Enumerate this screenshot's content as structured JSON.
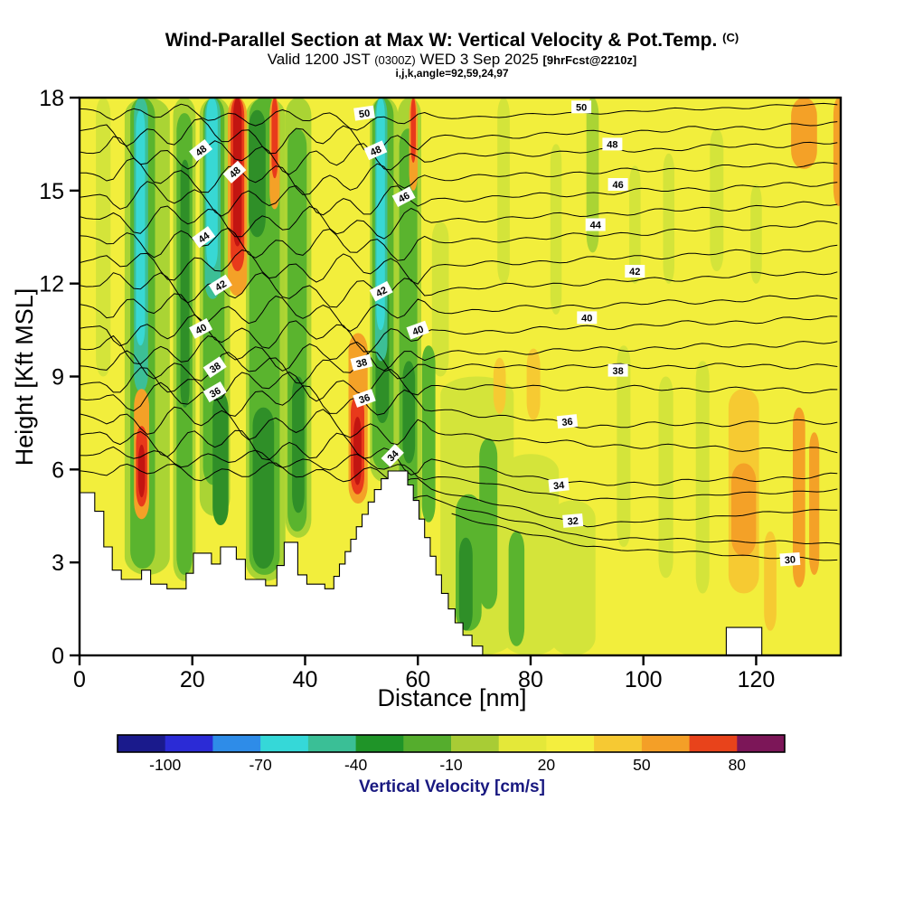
{
  "header": {
    "title": "Wind-Parallel Section at Max W: Vertical Velocity & Pot.Temp.",
    "title_unit": "(C)",
    "valid_prefix": "Valid 1200 JST",
    "valid_time_z": "(0300Z)",
    "valid_date": "WED 3 Sep 2025",
    "forecast_info": "[9hrFcst@2210z]",
    "grid_info": "i,j,k,angle=92,59,24,97"
  },
  "chart_data": {
    "type": "heatmap",
    "subtype": "vertical-cross-section-contour",
    "title": "Wind-Parallel Section at Max W: Vertical Velocity & Pot.Temp. (C)",
    "xlabel": "Distance [nm]",
    "ylabel": "Height [Kft MSL]",
    "x_ticks": [
      0,
      20,
      40,
      60,
      80,
      100,
      120
    ],
    "x_range": [
      0,
      135
    ],
    "y_ticks": [
      0,
      3,
      6,
      9,
      12,
      15,
      18
    ],
    "y_range": [
      0,
      18
    ],
    "contour_variable": "Potential Temperature (C)",
    "contour_levels": [
      30,
      31,
      32,
      33,
      34,
      35,
      36,
      37,
      38,
      39,
      40,
      41,
      42,
      43,
      44,
      45,
      46,
      47,
      48,
      49,
      50
    ],
    "contour_lines": [
      {
        "level": 50,
        "h0": 17.6,
        "h50": 17.25,
        "h135": 17.8
      },
      {
        "level": 49,
        "h0": 16.95,
        "h50": 16.6,
        "h135": 17.15
      },
      {
        "level": 48,
        "h0": 16.25,
        "h50": 16.0,
        "h135": 16.55
      },
      {
        "level": 47,
        "h0": 15.55,
        "h50": 15.3,
        "h135": 15.9
      },
      {
        "level": 46,
        "h0": 14.85,
        "h50": 14.6,
        "h135": 15.25
      },
      {
        "level": 45,
        "h0": 14.15,
        "h50": 13.9,
        "h135": 14.6
      },
      {
        "level": 44,
        "h0": 13.45,
        "h50": 13.2,
        "h135": 13.95
      },
      {
        "level": 43,
        "h0": 12.72,
        "h50": 12.45,
        "h135": 13.15
      },
      {
        "level": 42,
        "h0": 12.0,
        "h50": 11.7,
        "h135": 12.4
      },
      {
        "level": 41,
        "h0": 11.28,
        "h50": 11.0,
        "h135": 11.6
      },
      {
        "level": 40,
        "h0": 10.55,
        "h50": 10.3,
        "h135": 10.9
      },
      {
        "level": 39,
        "h0": 9.9,
        "h50": 9.65,
        "h135": 10.1
      },
      {
        "level": 38,
        "h0": 9.3,
        "h50": 9.3,
        "h135": 9.35
      },
      {
        "level": 37,
        "h0": 8.78,
        "h50": 8.7,
        "h135": 8.55
      },
      {
        "level": 36,
        "h0": 8.32,
        "h50": 8.2,
        "h90": 7.4,
        "h135": 7.55
      },
      {
        "level": 35,
        "h0": 7.7,
        "h50": 7.35,
        "h90": 6.8,
        "h135": 6.6
      },
      {
        "level": 34,
        "h0": 7.1,
        "h50": 6.6,
        "h90": 5.5,
        "h135": 5.8
      },
      {
        "level": 33,
        "h0": 6.5,
        "h50": 6.2,
        "h90": 5.0,
        "h135": 5.35
      },
      {
        "level": 32,
        "h0": 5.95,
        "h50": 5.9,
        "h90": 4.2,
        "h135": 4.75
      },
      {
        "level": 31,
        "h0": 5.6,
        "h50": 5.55,
        "h90": 3.8,
        "h135": 3.6,
        "xStart": 58
      },
      {
        "level": 30,
        "h0": 5.3,
        "h50": 5.2,
        "h90": 3.5,
        "h135": 3.05,
        "xStart": 66
      }
    ],
    "contour_labels": [
      {
        "level": 50,
        "x": 50.5,
        "y": 17.5,
        "rot": -8
      },
      {
        "level": 50,
        "x": 89,
        "y": 17.7,
        "rot": 0
      },
      {
        "level": 48,
        "x": 21.5,
        "y": 16.3,
        "rot": -38
      },
      {
        "level": 48,
        "x": 27.5,
        "y": 15.6,
        "rot": -42
      },
      {
        "level": 48,
        "x": 52.5,
        "y": 16.3,
        "rot": -24
      },
      {
        "level": 48,
        "x": 94.5,
        "y": 16.5,
        "rot": 0
      },
      {
        "level": 46,
        "x": 57.5,
        "y": 14.8,
        "rot": -28
      },
      {
        "level": 46,
        "x": 95.5,
        "y": 15.2,
        "rot": 0
      },
      {
        "level": 44,
        "x": 22,
        "y": 13.5,
        "rot": -36
      },
      {
        "level": 44,
        "x": 91.5,
        "y": 13.9,
        "rot": 0
      },
      {
        "level": 42,
        "x": 25,
        "y": 11.95,
        "rot": -32
      },
      {
        "level": 42,
        "x": 53.5,
        "y": 11.75,
        "rot": -28
      },
      {
        "level": 42,
        "x": 98.5,
        "y": 12.4,
        "rot": 0
      },
      {
        "level": 40,
        "x": 21.5,
        "y": 10.55,
        "rot": -28
      },
      {
        "level": 40,
        "x": 60,
        "y": 10.5,
        "rot": -20
      },
      {
        "level": 40,
        "x": 90,
        "y": 10.9,
        "rot": 0
      },
      {
        "level": 38,
        "x": 24,
        "y": 9.3,
        "rot": -34
      },
      {
        "level": 38,
        "x": 50,
        "y": 9.45,
        "rot": -14
      },
      {
        "level": 38,
        "x": 95.5,
        "y": 9.2,
        "rot": 0
      },
      {
        "level": 36,
        "x": 24,
        "y": 8.5,
        "rot": -30
      },
      {
        "level": 36,
        "x": 50.5,
        "y": 8.3,
        "rot": -20
      },
      {
        "level": 36,
        "x": 86.5,
        "y": 7.55,
        "rot": -6
      },
      {
        "level": 34,
        "x": 55.5,
        "y": 6.45,
        "rot": -46
      },
      {
        "level": 34,
        "x": 85,
        "y": 5.5,
        "rot": -6
      },
      {
        "level": 32,
        "x": 87.5,
        "y": 4.35,
        "rot": -5
      },
      {
        "level": 30,
        "x": 126,
        "y": 3.1,
        "rot": -4
      }
    ],
    "colorbar": {
      "label": "Vertical Velocity [cm/s]",
      "tick_labels": [
        -100,
        -70,
        -40,
        -10,
        20,
        50,
        80
      ],
      "segment_colors": [
        "#1a1a8c",
        "#2b2bd6",
        "#2e8ce8",
        "#35d8d8",
        "#3abf96",
        "#1f9428",
        "#55ad2d",
        "#a8cc35",
        "#e4e839",
        "#f4ee3e",
        "#f6c933",
        "#f49f27",
        "#e8431b",
        "#7c1658"
      ]
    },
    "field": {
      "background_color": "#f2ee3c",
      "bands": [
        {
          "x": 4.2,
          "hw": 1.3,
          "y0": 9,
          "y1": 18,
          "c": "#d4e43a"
        },
        {
          "x": 12,
          "hw": 4,
          "y0": 2.6,
          "y1": 18,
          "c": "#aad434"
        },
        {
          "x": 18.6,
          "hw": 2,
          "y0": 2.4,
          "y1": 18,
          "c": "#aad434"
        },
        {
          "x": 24,
          "hw": 2.7,
          "y0": 4.5,
          "y1": 18,
          "c": "#aad434"
        },
        {
          "x": 33,
          "hw": 3.5,
          "y0": 2.4,
          "y1": 18,
          "c": "#aad434"
        },
        {
          "x": 38.8,
          "hw": 2.3,
          "y0": 3.8,
          "y1": 18,
          "c": "#aad434"
        },
        {
          "x": 54,
          "hw": 2.5,
          "y0": 5.6,
          "y1": 18,
          "c": "#aad434"
        },
        {
          "x": 58.5,
          "hw": 2.1,
          "y0": 3,
          "y1": 18,
          "c": "#aad434"
        },
        {
          "x": 70.5,
          "hw": 6.5,
          "y0": 0,
          "y1": 9,
          "c": "#d4e43a"
        },
        {
          "x": 80,
          "hw": 5,
          "y0": 0,
          "y1": 6.5,
          "c": "#d4e43a"
        },
        {
          "x": 87.5,
          "hw": 4,
          "y0": 0,
          "y1": 5,
          "c": "#d4e43a"
        },
        {
          "x": 75.2,
          "hw": 1.1,
          "y0": 12,
          "y1": 18,
          "c": "#d4e43a"
        },
        {
          "x": 84.5,
          "hw": 1,
          "y0": 11,
          "y1": 16.5,
          "c": "#d4e43a"
        },
        {
          "x": 91,
          "hw": 1.1,
          "y0": 13,
          "y1": 18,
          "c": "#aad434"
        },
        {
          "x": 98.5,
          "hw": 1,
          "y0": 12,
          "y1": 15.8,
          "c": "#d4e43a"
        },
        {
          "x": 104.5,
          "hw": 1,
          "y0": 12,
          "y1": 16.2,
          "c": "#d4e43a"
        },
        {
          "x": 113,
          "hw": 1.2,
          "y0": 12.4,
          "y1": 17,
          "c": "#d4e43a"
        },
        {
          "x": 120,
          "hw": 1,
          "y0": 12,
          "y1": 15.2,
          "c": "#d4e43a"
        },
        {
          "x": 96.5,
          "hw": 1.2,
          "y0": 3.5,
          "y1": 10,
          "c": "#d4e43a"
        },
        {
          "x": 104,
          "hw": 1.3,
          "y0": 2.5,
          "y1": 9,
          "c": "#d4e43a"
        },
        {
          "x": 110.5,
          "hw": 1.2,
          "y0": 2,
          "y1": 9.5,
          "c": "#d4e43a"
        },
        {
          "x": 64,
          "hw": 1.5,
          "y0": 9,
          "y1": 14,
          "c": "#d4e43a"
        },
        {
          "x": 11.2,
          "hw": 2.2,
          "y0": 2.8,
          "y1": 18,
          "c": "#5ab42e"
        },
        {
          "x": 18.6,
          "hw": 1.4,
          "y0": 2.6,
          "y1": 17.5,
          "c": "#5ab42e"
        },
        {
          "x": 23.8,
          "hw": 1.9,
          "y0": 5.5,
          "y1": 18,
          "c": "#5ab42e"
        },
        {
          "x": 25,
          "hw": 1.4,
          "y0": 4.2,
          "y1": 8.5,
          "c": "#2f8f28"
        },
        {
          "x": 32.8,
          "hw": 2.7,
          "y0": 2.6,
          "y1": 18,
          "c": "#5ab42e"
        },
        {
          "x": 31.5,
          "hw": 1.5,
          "y0": 13.5,
          "y1": 17.6,
          "c": "#2f8f28"
        },
        {
          "x": 32.6,
          "hw": 1.9,
          "y0": 2.8,
          "y1": 8,
          "c": "#2f8f28"
        },
        {
          "x": 38.6,
          "hw": 1.7,
          "y0": 4,
          "y1": 17,
          "c": "#5ab42e"
        },
        {
          "x": 38.8,
          "hw": 1.1,
          "y0": 4.6,
          "y1": 9,
          "c": "#2f8f28"
        },
        {
          "x": 18.7,
          "hw": 0.8,
          "y0": 8,
          "y1": 16,
          "c": "#2f8f28"
        },
        {
          "x": 53.8,
          "hw": 1.9,
          "y0": 6,
          "y1": 18,
          "c": "#5ab42e"
        },
        {
          "x": 53.7,
          "hw": 1.2,
          "y0": 7.5,
          "y1": 12,
          "c": "#2f8f28"
        },
        {
          "x": 58.3,
          "hw": 1.6,
          "y0": 4,
          "y1": 17,
          "c": "#5ab42e"
        },
        {
          "x": 58.4,
          "hw": 1.1,
          "y0": 6.2,
          "y1": 9.5,
          "c": "#2f8f28"
        },
        {
          "x": 61.9,
          "hw": 1.2,
          "y0": 4.3,
          "y1": 10,
          "c": "#5ab42e"
        },
        {
          "x": 69,
          "hw": 2.3,
          "y0": 0.8,
          "y1": 5.2,
          "c": "#5ab42e"
        },
        {
          "x": 72.5,
          "hw": 1.6,
          "y0": 1.5,
          "y1": 7,
          "c": "#5ab42e"
        },
        {
          "x": 77.5,
          "hw": 1.4,
          "y0": 0.3,
          "y1": 4,
          "c": "#5ab42e"
        },
        {
          "x": 68.5,
          "hw": 1.2,
          "y0": 0.8,
          "y1": 3.8,
          "c": "#2f8f28"
        },
        {
          "x": 10.9,
          "hw": 1.25,
          "y0": 8.5,
          "y1": 18,
          "c": "#3cbf96"
        },
        {
          "x": 10.8,
          "hw": 0.8,
          "y0": 10,
          "y1": 17.6,
          "c": "#38d8d4"
        },
        {
          "x": 23.6,
          "hw": 1.4,
          "y0": 11.5,
          "y1": 18,
          "c": "#3cbf96"
        },
        {
          "x": 23.5,
          "hw": 1,
          "y0": 12.5,
          "y1": 18,
          "c": "#38d8d4"
        },
        {
          "x": 53.5,
          "hw": 1.1,
          "y0": 9.5,
          "y1": 18,
          "c": "#3cbf96"
        },
        {
          "x": 53.4,
          "hw": 0.75,
          "y0": 10.5,
          "y1": 18,
          "c": "#38d8d4"
        },
        {
          "x": 11,
          "hw": 1.35,
          "y0": 4.4,
          "y1": 8.6,
          "c": "#f4a127"
        },
        {
          "x": 11,
          "hw": 1,
          "y0": 4.8,
          "y1": 7.4,
          "c": "#e83a1b"
        },
        {
          "x": 11,
          "hw": 0.6,
          "y0": 5.1,
          "y1": 6.8,
          "c": "#c21511"
        },
        {
          "x": 28,
          "hw": 1.7,
          "y0": 11.6,
          "y1": 18,
          "c": "#f4a127"
        },
        {
          "x": 28,
          "hw": 1.2,
          "y0": 12.4,
          "y1": 18,
          "c": "#e83a1b"
        },
        {
          "x": 28,
          "hw": 0.75,
          "y0": 13.2,
          "y1": 18,
          "c": "#c21511"
        },
        {
          "x": 34.6,
          "hw": 0.9,
          "y0": 14.4,
          "y1": 18,
          "c": "#f4a127"
        },
        {
          "x": 34.6,
          "hw": 0.55,
          "y0": 15.4,
          "y1": 18,
          "c": "#e83a1b"
        },
        {
          "x": 49.4,
          "hw": 1.7,
          "y0": 4.9,
          "y1": 10.4,
          "c": "#f4a127"
        },
        {
          "x": 49.3,
          "hw": 1.2,
          "y0": 5.2,
          "y1": 8.4,
          "c": "#e83a1b"
        },
        {
          "x": 49.3,
          "hw": 0.7,
          "y0": 5.5,
          "y1": 7.7,
          "c": "#c21511"
        },
        {
          "x": 59.2,
          "hw": 0.75,
          "y0": 15,
          "y1": 18,
          "c": "#f4a127"
        },
        {
          "x": 59.2,
          "hw": 0.45,
          "y0": 15.9,
          "y1": 18,
          "c": "#e83a1b"
        },
        {
          "x": 117.8,
          "hw": 2.7,
          "y0": 2,
          "y1": 8.6,
          "c": "#f6ca32"
        },
        {
          "x": 117.8,
          "hw": 2.2,
          "y0": 3.2,
          "y1": 6.2,
          "c": "#f4a127"
        },
        {
          "x": 127.6,
          "hw": 1.1,
          "y0": 2.2,
          "y1": 8,
          "c": "#f4a127"
        },
        {
          "x": 130.3,
          "hw": 0.9,
          "y0": 2.6,
          "y1": 7.2,
          "c": "#f4a127"
        },
        {
          "x": 128.5,
          "hw": 2.3,
          "y0": 15.7,
          "y1": 18,
          "c": "#f4a127"
        },
        {
          "x": 134.6,
          "hw": 0.9,
          "y0": 14.5,
          "y1": 18,
          "c": "#f4a127"
        },
        {
          "x": 74.5,
          "hw": 1.1,
          "y0": 7.8,
          "y1": 9.6,
          "c": "#f6ca32"
        },
        {
          "x": 80.5,
          "hw": 1.2,
          "y0": 7.6,
          "y1": 9.9,
          "c": "#f6ca32"
        },
        {
          "x": 122.5,
          "hw": 1.1,
          "y0": 0.8,
          "y1": 4,
          "c": "#f6ca32"
        }
      ]
    },
    "terrain_profile": [
      [
        0,
        5.25
      ],
      [
        2.7,
        5.25
      ],
      [
        2.7,
        4.65
      ],
      [
        4.3,
        4.65
      ],
      [
        4.3,
        3.5
      ],
      [
        5.8,
        3.5
      ],
      [
        5.8,
        2.75
      ],
      [
        7.4,
        2.75
      ],
      [
        7.4,
        2.45
      ],
      [
        11,
        2.45
      ],
      [
        11,
        2.75
      ],
      [
        12.6,
        2.75
      ],
      [
        12.6,
        2.3
      ],
      [
        15.5,
        2.3
      ],
      [
        15.5,
        2.15
      ],
      [
        18.9,
        2.15
      ],
      [
        18.9,
        2.65
      ],
      [
        20.2,
        2.65
      ],
      [
        20.2,
        3.3
      ],
      [
        23.4,
        3.3
      ],
      [
        23.4,
        2.95
      ],
      [
        25,
        2.95
      ],
      [
        25,
        3.5
      ],
      [
        27.8,
        3.5
      ],
      [
        27.8,
        3.1
      ],
      [
        29.4,
        3.1
      ],
      [
        29.4,
        2.45
      ],
      [
        33,
        2.45
      ],
      [
        33,
        2.25
      ],
      [
        35,
        2.25
      ],
      [
        35,
        2.9
      ],
      [
        36.3,
        2.9
      ],
      [
        36.3,
        3.65
      ],
      [
        38.7,
        3.65
      ],
      [
        38.7,
        2.6
      ],
      [
        40.3,
        2.6
      ],
      [
        40.3,
        2.3
      ],
      [
        43.5,
        2.3
      ],
      [
        43.5,
        2.15
      ],
      [
        45.1,
        2.15
      ],
      [
        45.1,
        2.55
      ],
      [
        46.1,
        2.55
      ],
      [
        46.1,
        2.95
      ],
      [
        47.1,
        2.95
      ],
      [
        47.1,
        3.35
      ],
      [
        48.1,
        3.35
      ],
      [
        48.1,
        3.75
      ],
      [
        49.1,
        3.75
      ],
      [
        49.1,
        4.15
      ],
      [
        50.1,
        4.15
      ],
      [
        50.1,
        4.55
      ],
      [
        51.2,
        4.55
      ],
      [
        51.2,
        4.95
      ],
      [
        52.3,
        4.95
      ],
      [
        52.3,
        5.35
      ],
      [
        53.5,
        5.35
      ],
      [
        53.5,
        5.7
      ],
      [
        54.7,
        5.7
      ],
      [
        54.7,
        5.95
      ],
      [
        58.2,
        5.95
      ],
      [
        58.2,
        5.5
      ],
      [
        59.2,
        5.5
      ],
      [
        59.2,
        5.0
      ],
      [
        60.2,
        5.0
      ],
      [
        60.2,
        4.4
      ],
      [
        61.2,
        4.4
      ],
      [
        61.2,
        3.8
      ],
      [
        62.2,
        3.8
      ],
      [
        62.2,
        3.2
      ],
      [
        63.2,
        3.2
      ],
      [
        63.2,
        2.6
      ],
      [
        64.2,
        2.6
      ],
      [
        64.2,
        2.0
      ],
      [
        65.4,
        2.0
      ],
      [
        65.4,
        1.5
      ],
      [
        66.6,
        1.5
      ],
      [
        66.6,
        1.05
      ],
      [
        68,
        1.05
      ],
      [
        68,
        0.65
      ],
      [
        69.6,
        0.65
      ],
      [
        69.6,
        0.3
      ],
      [
        71.5,
        0.3
      ],
      [
        71.5,
        0
      ],
      [
        114.7,
        0
      ],
      [
        114.7,
        0.9
      ],
      [
        121,
        0.9
      ],
      [
        121,
        0
      ],
      [
        135,
        0
      ]
    ]
  }
}
